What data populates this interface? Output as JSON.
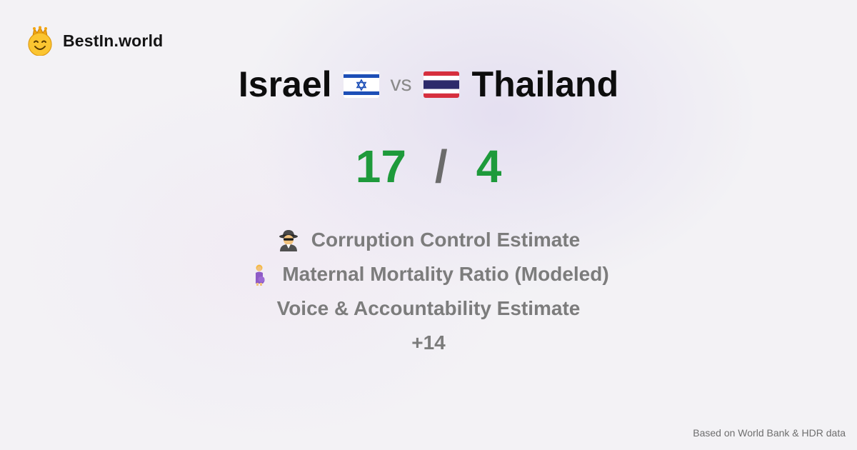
{
  "brand": {
    "name": "BestIn.world",
    "logo_icon": "crowned-smiley-icon"
  },
  "comparison": {
    "left_country": "Israel",
    "left_flag_icon": "israel-flag-icon",
    "vs_label": "vs",
    "right_country": "Thailand",
    "right_flag_icon": "thailand-flag-icon"
  },
  "scores": {
    "left": "17",
    "separator": "/",
    "right": "4"
  },
  "metrics": [
    {
      "icon": "detective-icon",
      "label": "Corruption Control Estimate"
    },
    {
      "icon": "pregnant-woman-icon",
      "label": "Maternal Mortality Ratio (Modeled)"
    },
    {
      "icon": "",
      "label": "Voice & Accountability Estimate"
    }
  ],
  "more_label": "+14",
  "source_note": "Based on World Bank & HDR data",
  "colors": {
    "score": "#1e9a3b",
    "muted_text": "#7c7c7c",
    "title_text": "#0d0d0d"
  }
}
